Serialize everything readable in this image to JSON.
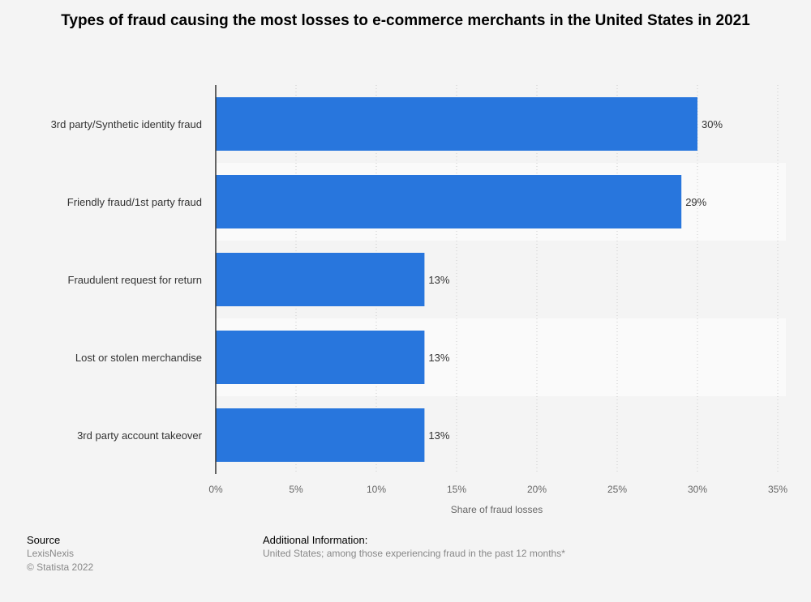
{
  "chart_data": {
    "type": "bar",
    "orientation": "horizontal",
    "title": "Types of fraud causing the most losses to e-commerce merchants in the United States in 2021",
    "categories": [
      "3rd party/Synthetic identity fraud",
      "Friendly fraud/1st party fraud",
      "Fraudulent request for return",
      "Lost or stolen merchandise",
      "3rd party account takeover"
    ],
    "values": [
      30,
      29,
      13,
      13,
      13
    ],
    "data_labels": [
      "30%",
      "29%",
      "13%",
      "13%",
      "13%"
    ],
    "xlabel": "Share of fraud losses",
    "xlim": [
      0,
      35
    ],
    "xticks": [
      "0%",
      "5%",
      "10%",
      "15%",
      "20%",
      "25%",
      "30%",
      "35%"
    ],
    "grid": true,
    "bar_color": "#2876dd"
  },
  "footer": {
    "source_heading": "Source",
    "source": "LexisNexis",
    "copyright": "© Statista 2022",
    "info_heading": "Additional Information:",
    "info": "United States; among those experiencing fraud in the past 12 months*"
  }
}
